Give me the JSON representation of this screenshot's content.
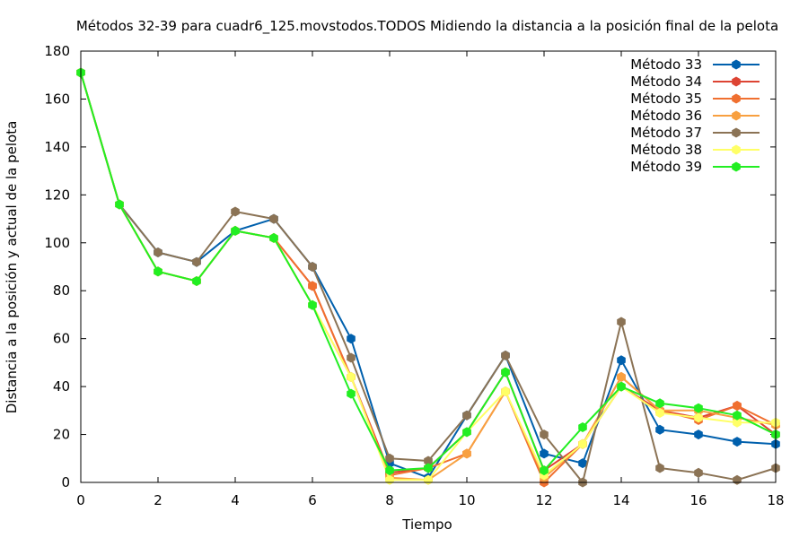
{
  "chart_data": {
    "type": "line",
    "title": "Métodos 32-39 para cuadr6_125.movstodos.TODOS Midiendo la distancia a la posición final de la pelota",
    "xlabel": "Tiempo",
    "ylabel": "Distancia a la posición y actual de la pelota",
    "xlim": [
      0,
      18
    ],
    "ylim": [
      0,
      180
    ],
    "xticks": [
      "0",
      "2",
      "4",
      "6",
      "8",
      "10",
      "12",
      "14",
      "16",
      "18"
    ],
    "yticks": [
      "0",
      "20",
      "40",
      "60",
      "80",
      "100",
      "120",
      "140",
      "160",
      "180"
    ],
    "grid": false,
    "legend_position": "top-right",
    "x": [
      0,
      1,
      2,
      3,
      4,
      5,
      6,
      7,
      8,
      9,
      10,
      11,
      12,
      13,
      14,
      15,
      16,
      17,
      18
    ],
    "series": [
      {
        "name": "Método 33",
        "color": "#0060ad",
        "values": [
          171,
          116,
          96,
          92,
          105,
          110,
          90,
          60,
          8,
          2,
          28,
          53,
          12,
          8,
          51,
          22,
          20,
          17,
          16
        ]
      },
      {
        "name": "Método 34",
        "color": "#dd4433",
        "values": [
          171,
          116,
          88,
          84,
          105,
          102,
          82,
          44,
          4,
          6,
          21,
          46,
          5,
          16,
          40,
          30,
          27,
          32,
          20
        ]
      },
      {
        "name": "Método 35",
        "color": "#f07030",
        "values": [
          171,
          116,
          88,
          84,
          105,
          102,
          82,
          44,
          3,
          6,
          12,
          38,
          0,
          16,
          44,
          30,
          26,
          32,
          24
        ]
      },
      {
        "name": "Método 36",
        "color": "#f8a040",
        "values": [
          171,
          116,
          88,
          84,
          105,
          102,
          74,
          44,
          2,
          1,
          12,
          38,
          2,
          16,
          44,
          30,
          30,
          27,
          24
        ]
      },
      {
        "name": "Método 37",
        "color": "#8b7355",
        "values": [
          171,
          116,
          96,
          92,
          113,
          110,
          90,
          52,
          10,
          9,
          28,
          53,
          20,
          0,
          67,
          6,
          4,
          1,
          6
        ]
      },
      {
        "name": "Método 38",
        "color": "#ffff66",
        "values": [
          171,
          116,
          88,
          84,
          105,
          102,
          74,
          44,
          1,
          1,
          21,
          38,
          3,
          16,
          40,
          29,
          27,
          25,
          25
        ]
      },
      {
        "name": "Método 39",
        "color": "#22ee22",
        "values": [
          171,
          116,
          88,
          84,
          105,
          102,
          74,
          37,
          5,
          6,
          21,
          46,
          5,
          23,
          40,
          33,
          31,
          28,
          20
        ]
      }
    ]
  }
}
